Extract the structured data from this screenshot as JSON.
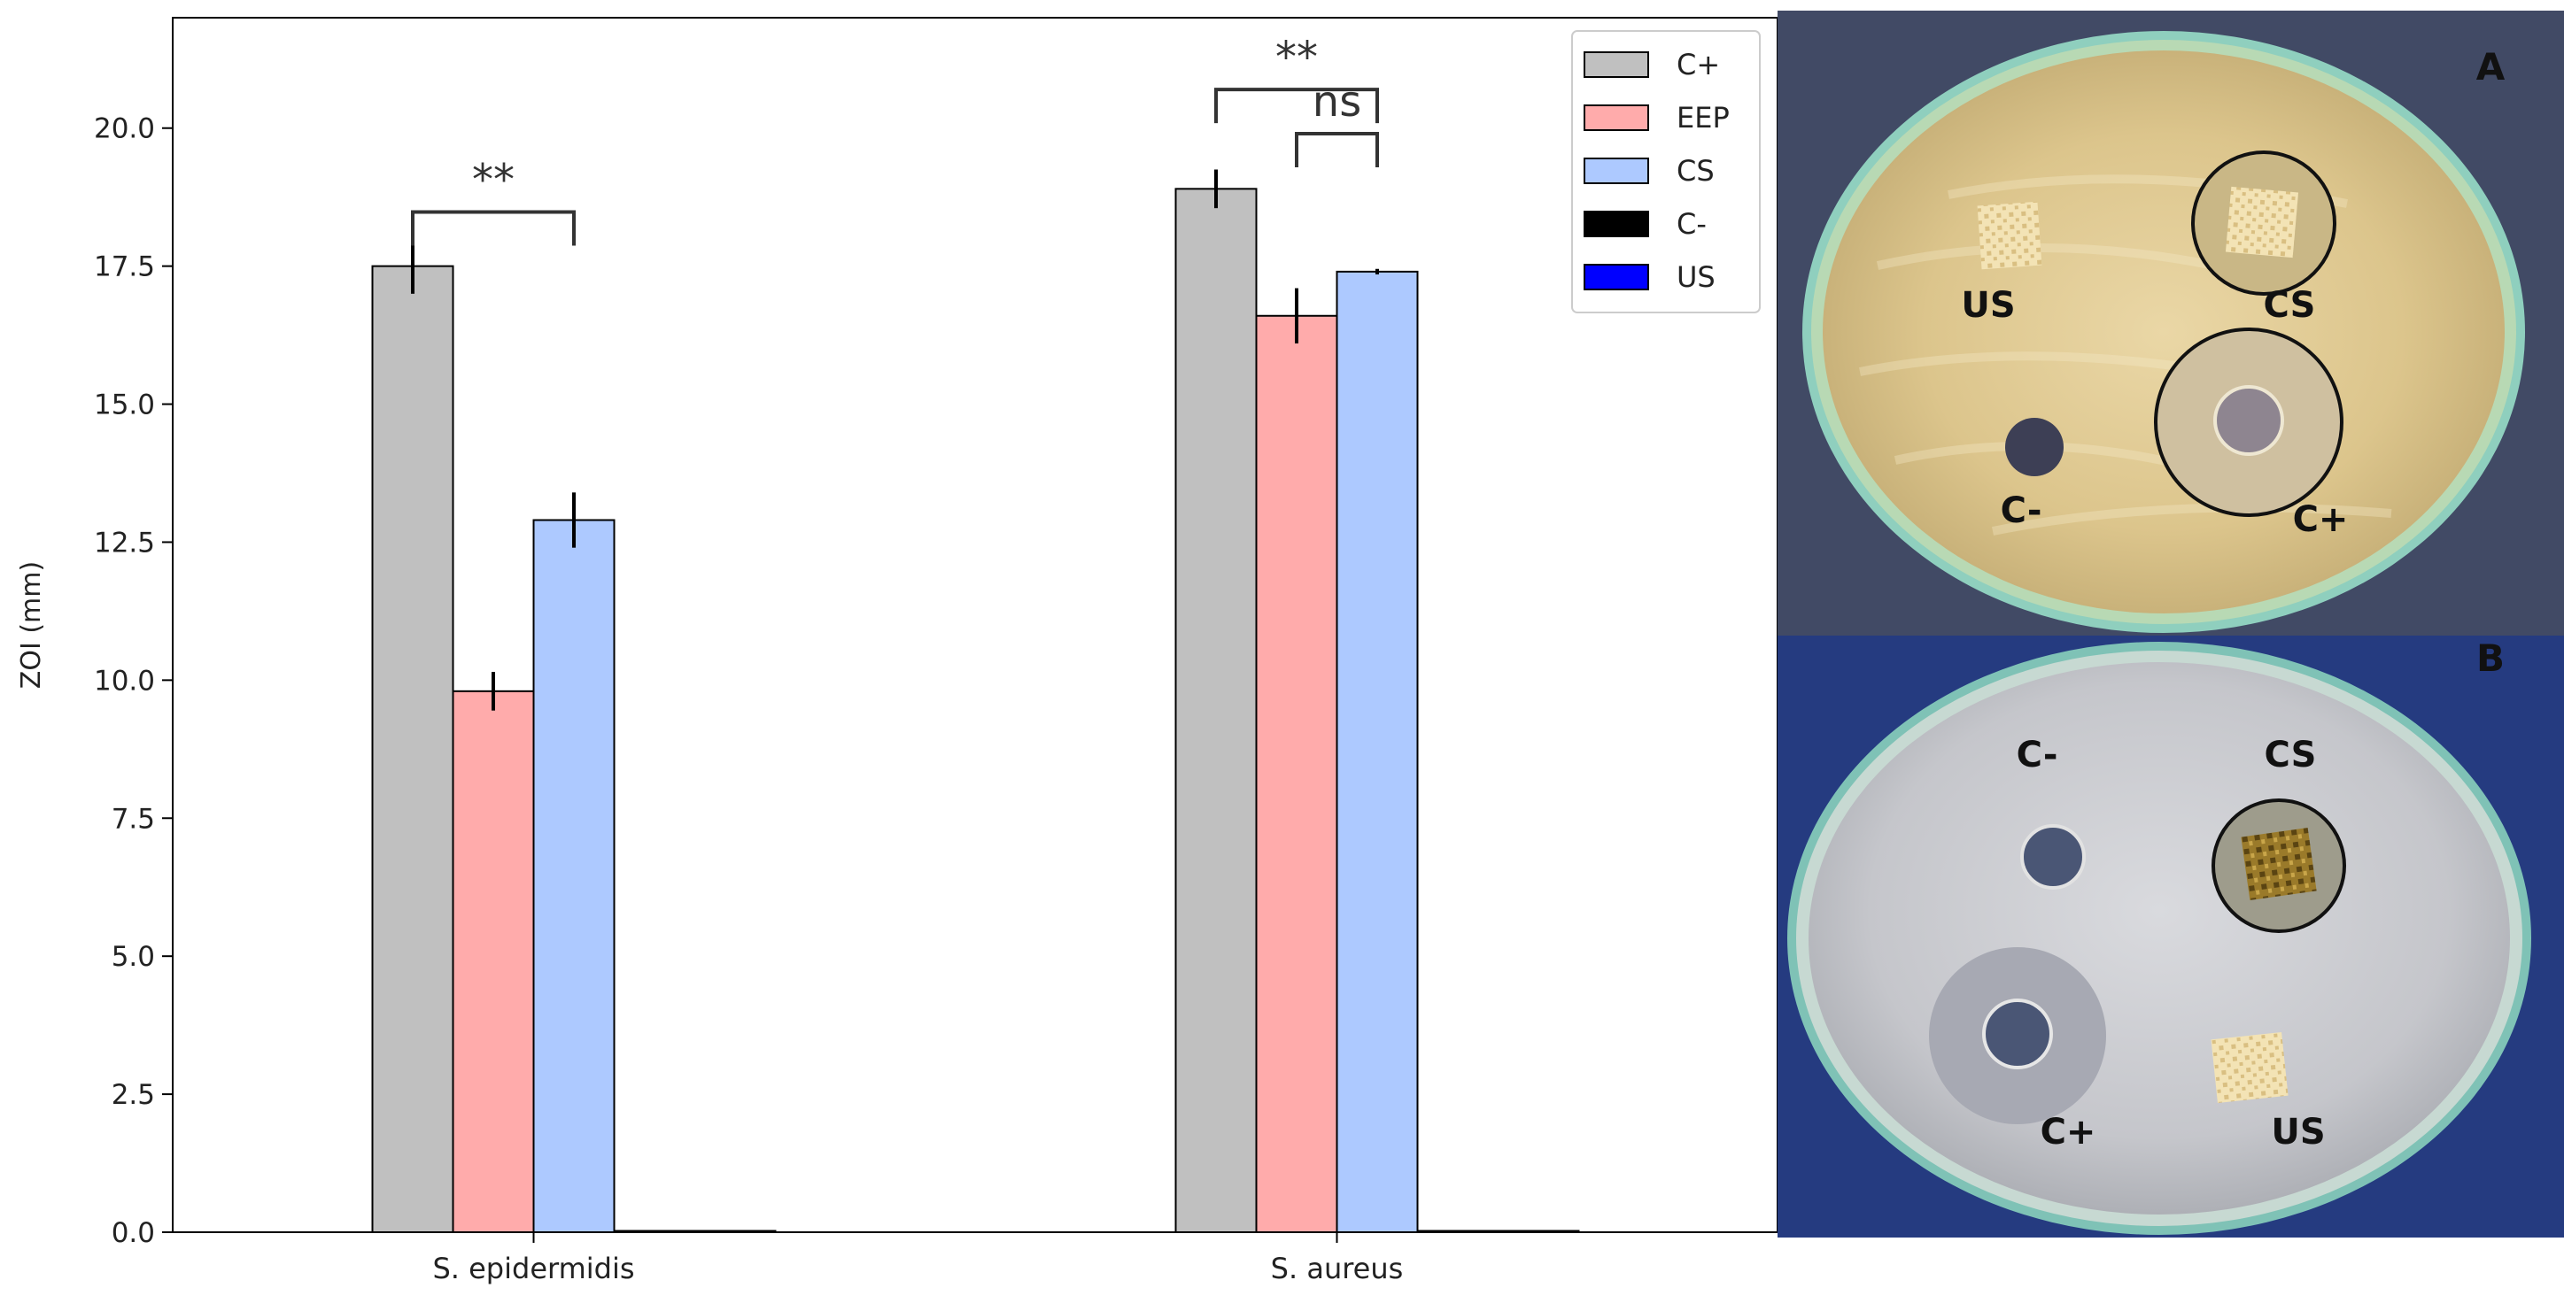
{
  "chart_data": {
    "type": "bar",
    "ylabel": "ZOI (mm)",
    "xlabel": "",
    "ylim": [
      0,
      22
    ],
    "yticks": [
      "0.0",
      "2.5",
      "5.0",
      "7.5",
      "10.0",
      "12.5",
      "15.0",
      "17.5",
      "20.0"
    ],
    "categories": [
      "S. epidermidis",
      "S. aureus"
    ],
    "series": [
      {
        "name": "C+",
        "color": "#c0c0c0",
        "values": [
          17.5,
          18.9
        ],
        "errors": [
          0.5,
          0.35
        ]
      },
      {
        "name": "EEP",
        "color": "#ffabab",
        "values": [
          9.8,
          16.6
        ],
        "errors": [
          0.35,
          0.5
        ]
      },
      {
        "name": "CS",
        "color": "#adc9ff",
        "values": [
          12.9,
          17.4
        ],
        "errors": [
          0.5,
          0.05
        ]
      },
      {
        "name": "C-",
        "color": "#000000",
        "values": [
          0,
          0
        ],
        "errors": [
          0,
          0
        ]
      },
      {
        "name": "US",
        "color": "#0000ff",
        "values": [
          0,
          0
        ],
        "errors": [
          0,
          0
        ]
      }
    ],
    "legend_position": "top-right",
    "grid": false,
    "annotations": [
      {
        "text": "**",
        "category": "S. epidermidis",
        "between": [
          "C+",
          "CS"
        ]
      },
      {
        "text": "**",
        "category": "S. aureus",
        "between": [
          "C+",
          "CS"
        ]
      },
      {
        "text": "ns",
        "category": "S. aureus",
        "between": [
          "EEP",
          "CS"
        ]
      }
    ]
  },
  "photos": {
    "panel_a_label": "A",
    "panel_b_label": "B",
    "plate_a_labels": [
      "US",
      "CS",
      "C-",
      "C+"
    ],
    "plate_b_labels": [
      "C-",
      "CS",
      "C+",
      "US"
    ]
  }
}
